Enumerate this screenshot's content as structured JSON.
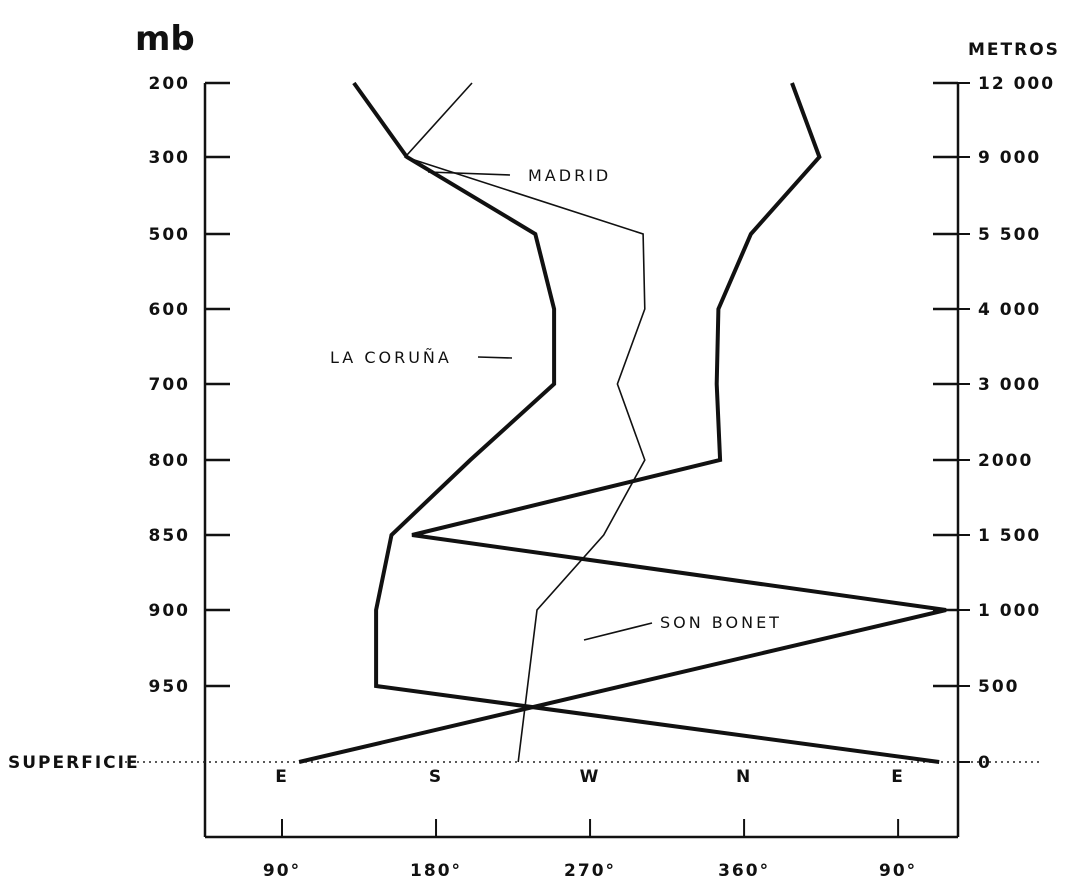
{
  "chart_data": {
    "type": "line",
    "title": "",
    "left_axis_unit": "mb",
    "right_axis_unit": "METROS",
    "levels": [
      "200",
      "300",
      "500",
      "600",
      "700",
      "800",
      "850",
      "900",
      "950",
      "SUPERFICIE"
    ],
    "heights": [
      "12 000",
      "9 000",
      "5 500",
      "4 000",
      "3 000",
      "2000",
      "1 500",
      "1 000",
      "500",
      "0"
    ],
    "direction_letters": [
      "E",
      "S",
      "W",
      "N",
      "E"
    ],
    "degree_ticks": [
      "90°",
      "180°",
      "270°",
      "360°",
      "90°"
    ],
    "x_ticks": [
      90,
      180,
      270,
      360,
      450
    ],
    "x_range": [
      45,
      485
    ],
    "series": [
      {
        "name": "MADRID",
        "style": "thin",
        "x": [
          201,
          162,
          301,
          302,
          286,
          302,
          278,
          239,
          228
        ],
        "level": [
          0,
          1,
          2,
          3,
          4,
          5,
          6,
          7,
          9
        ]
      },
      {
        "name": "LA CORUÑA",
        "style": "thick",
        "x": [
          132,
          163,
          238,
          249,
          249,
          200,
          154,
          145,
          145,
          474
        ],
        "level": [
          0,
          1,
          2,
          3,
          4,
          5,
          6,
          7,
          8,
          9
        ]
      },
      {
        "name": "SON BONET",
        "style": "thick",
        "x": [
          388,
          404,
          364,
          345,
          344,
          346,
          166,
          478,
          100
        ],
        "level": [
          0,
          1,
          2,
          3,
          4,
          5,
          6,
          7,
          9
        ]
      }
    ],
    "annotations": [
      "MADRID",
      "LA CORUÑA",
      "SON BONET"
    ]
  }
}
